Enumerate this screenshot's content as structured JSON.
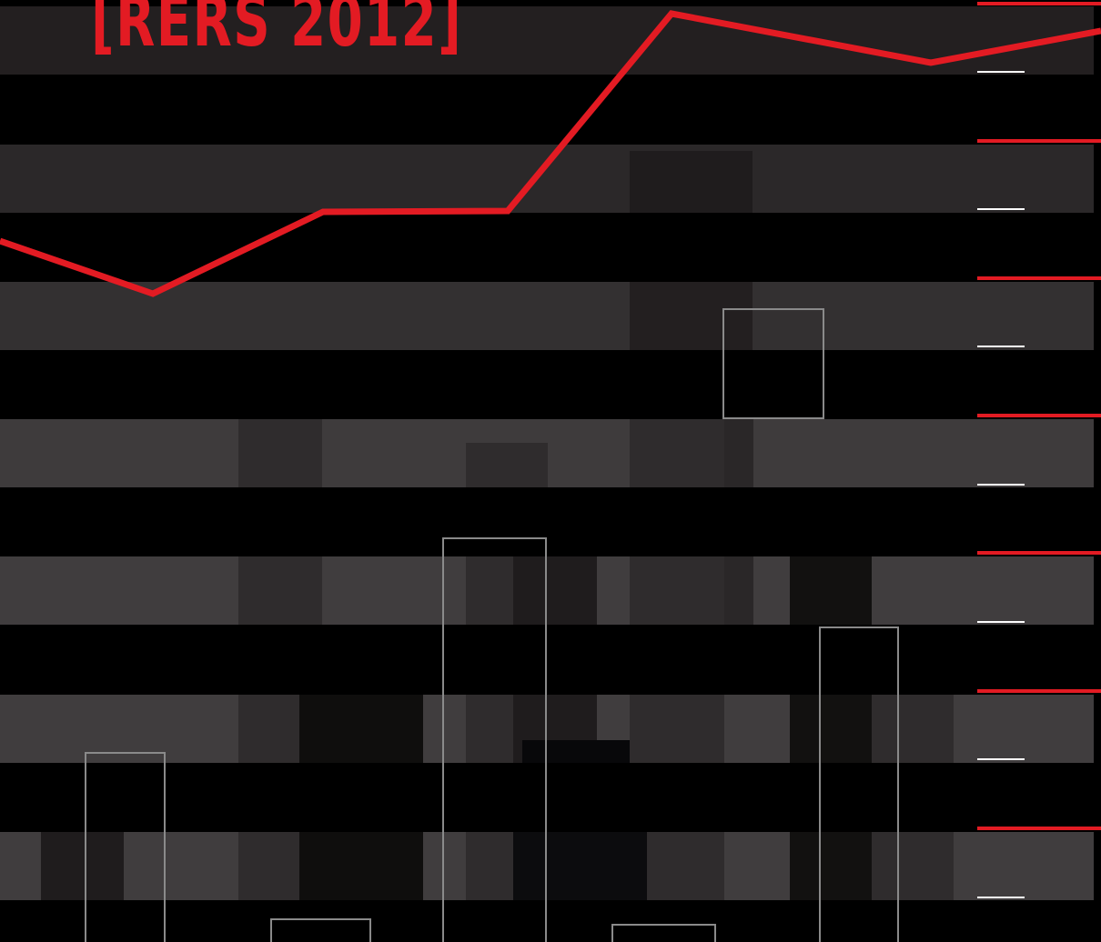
{
  "header": {
    "title": "[RERS 2012]"
  }
}
